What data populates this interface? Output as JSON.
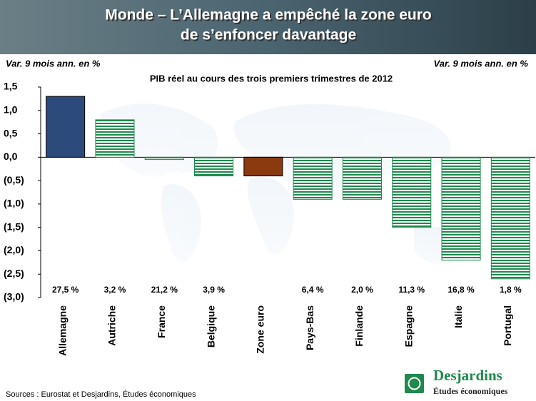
{
  "chart_data": {
    "type": "bar",
    "title": [
      "Monde – L’Allemagne a empêché la zone euro",
      "de s’enfoncer davantage"
    ],
    "y_label_left": "Var. 9 mois ann. en %",
    "y_label_right": "Var. 9 mois ann. en %",
    "subtitle": "PIB réel au cours des trois premiers trimestres de 2012",
    "categories": [
      "Allemagne",
      "Autriche",
      "France",
      "Belgique",
      "Zone euro",
      "Pays-Bas",
      "Finlande",
      "Espagne",
      "Italie",
      "Portugal"
    ],
    "values": [
      1.3,
      0.8,
      -0.05,
      -0.4,
      -0.4,
      -0.9,
      -0.9,
      -1.5,
      -2.2,
      -2.6
    ],
    "colors": [
      "#2d4a7c",
      "#1e8a4c",
      "#1e8a4c",
      "#1e8a4c",
      "#8a3a0e",
      "#1e8a4c",
      "#1e8a4c",
      "#1e8a4c",
      "#1e8a4c",
      "#1e8a4c"
    ],
    "hatched": [
      false,
      true,
      true,
      true,
      false,
      true,
      true,
      true,
      true,
      true
    ],
    "annotations": [
      "27,5 %",
      "3,2 %",
      "21,2 %",
      "3,9 %",
      null,
      "6,4 %",
      "2,0 %",
      "11,3 %",
      "16,8 %",
      "1,8 %"
    ],
    "ylim": [
      -3.0,
      1.5
    ],
    "yticks": [
      {
        "value": 1.5,
        "label": "1,5"
      },
      {
        "value": 1.0,
        "label": "1,0"
      },
      {
        "value": 0.5,
        "label": "0,5"
      },
      {
        "value": 0.0,
        "label": "0,0"
      },
      {
        "value": -0.5,
        "label": "(0,5)"
      },
      {
        "value": -1.0,
        "label": "(1,0)"
      },
      {
        "value": -1.5,
        "label": "(1,5)"
      },
      {
        "value": -2.0,
        "label": "(2,0)"
      },
      {
        "value": -2.5,
        "label": "(2,5)"
      },
      {
        "value": -3.0,
        "label": "(3,0)"
      }
    ],
    "source": "Sources : Eurostat et Desjardins, Études économiques",
    "logo": {
      "name": "Desjardins",
      "subtitle": "Études économiques"
    }
  }
}
